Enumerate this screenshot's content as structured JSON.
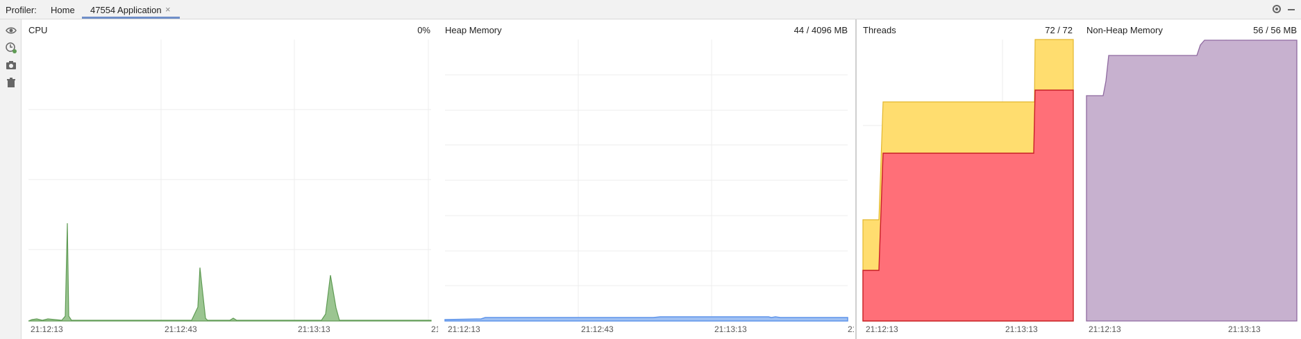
{
  "header": {
    "profiler_label": "Profiler:",
    "tabs": [
      {
        "label": "Home"
      },
      {
        "label": "47554 Application"
      }
    ],
    "close_glyph": "×",
    "icons": [
      "gear-icon",
      "minimize-icon"
    ]
  },
  "sidebar": {
    "tools": [
      {
        "icon": "eye-icon"
      },
      {
        "icon": "add-watch-icon"
      },
      {
        "icon": "camera-icon"
      },
      {
        "icon": "trash-icon"
      }
    ]
  },
  "panels": {
    "cpu": {
      "title": "CPU",
      "value": "0%"
    },
    "heap": {
      "title": "Heap Memory",
      "value": "44 / 4096 MB"
    },
    "threads": {
      "title": "Threads",
      "value": "72 / 72"
    },
    "nonheap": {
      "title": "Non-Heap Memory",
      "value": "56 / 56 MB"
    }
  },
  "timeline": {
    "cpu_ticks": [
      "21:12:13",
      "21:12:43",
      "21:13:13",
      "21"
    ],
    "heap_ticks": [
      "21:12:13",
      "21:12:43",
      "21:13:13",
      "21"
    ],
    "threads_ticks": [
      "21:12:13",
      "21:13:13"
    ],
    "nonheap_ticks": [
      "21:12:13",
      "21:13:13"
    ]
  },
  "colors": {
    "cpu": "#5f9b54",
    "heap": "#5e94ea",
    "threads_live": "#ff6f78",
    "threads_total": "#ffdd6f",
    "nonheap": "#c7b1cf"
  }
}
